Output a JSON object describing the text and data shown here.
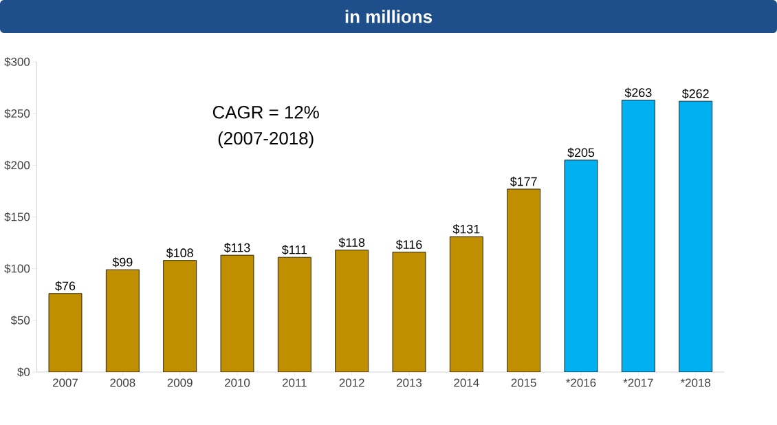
{
  "chart_data": {
    "type": "bar",
    "title": "in millions",
    "categories": [
      "2007",
      "2008",
      "2009",
      "2010",
      "2011",
      "2012",
      "2013",
      "2014",
      "2015",
      "*2016",
      "*2017",
      "*2018"
    ],
    "values": [
      76,
      99,
      108,
      113,
      111,
      118,
      116,
      131,
      177,
      205,
      263,
      262
    ],
    "colors": [
      "#bf8f00",
      "#bf8f00",
      "#bf8f00",
      "#bf8f00",
      "#bf8f00",
      "#bf8f00",
      "#bf8f00",
      "#bf8f00",
      "#bf8f00",
      "#00b0f0",
      "#00b0f0",
      "#00b0f0"
    ],
    "value_labels": [
      "$76",
      "$99",
      "$108",
      "$113",
      "$111",
      "$118",
      "$116",
      "$131",
      "$177",
      "$205",
      "$263",
      "$262"
    ],
    "ylim": [
      0,
      300
    ],
    "yticks": [
      {
        "value": 0,
        "label": "$0"
      },
      {
        "value": 50,
        "label": "$50"
      },
      {
        "value": 100,
        "label": "$100"
      },
      {
        "value": 150,
        "label": "$150"
      },
      {
        "value": 200,
        "label": "$200"
      },
      {
        "value": 250,
        "label": "$250"
      },
      {
        "value": 300,
        "label": "$300"
      }
    ],
    "annotations": [
      "CAGR = 12%",
      "(2007-2018)"
    ],
    "grid": false
  }
}
